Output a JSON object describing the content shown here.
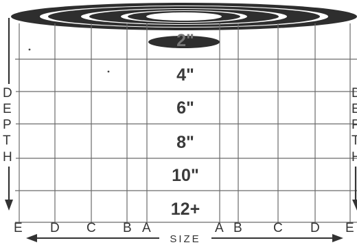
{
  "depth_values": [
    "2\"",
    "4\"",
    "6\"",
    "8\"",
    "10\"",
    "12+"
  ],
  "depth_axis_letters": [
    "D",
    "E",
    "P",
    "T",
    "H"
  ],
  "size_letters": [
    "E",
    "D",
    "C",
    "B",
    "A",
    "A",
    "B",
    "C",
    "D",
    "E"
  ],
  "size_label": "SIZE",
  "colors": {
    "ink": "#333333",
    "grid": "#6a6a6a",
    "ring_dark": "#2e2e2e",
    "text_gray": "#3a3a3a",
    "background": "#ffffff"
  }
}
